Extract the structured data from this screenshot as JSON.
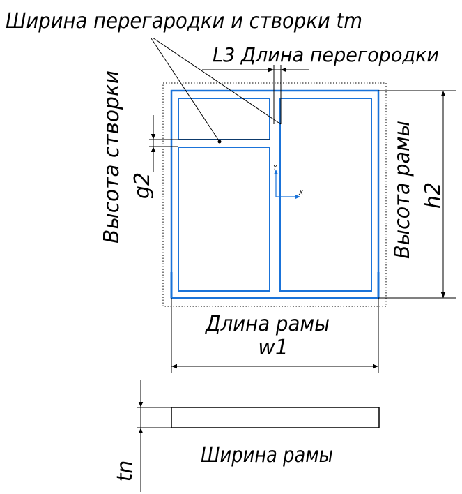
{
  "labels": {
    "partition_sash_width": "Ширина перегародки и створки tm",
    "partition_length": "L3 Длина перегородки",
    "sash_height": "Высота створки",
    "sash_height_var": "g2",
    "frame_height": "Высота рамы",
    "frame_height_var": "h2",
    "frame_length": "Длина рамы",
    "frame_length_var": "w1",
    "frame_width": "Ширина рамы",
    "frame_width_var": "tn",
    "axis_y": "Y",
    "axis_x": "X"
  },
  "colors": {
    "frame": "#1a73d9",
    "line": "#000000",
    "background": "#ffffff"
  }
}
